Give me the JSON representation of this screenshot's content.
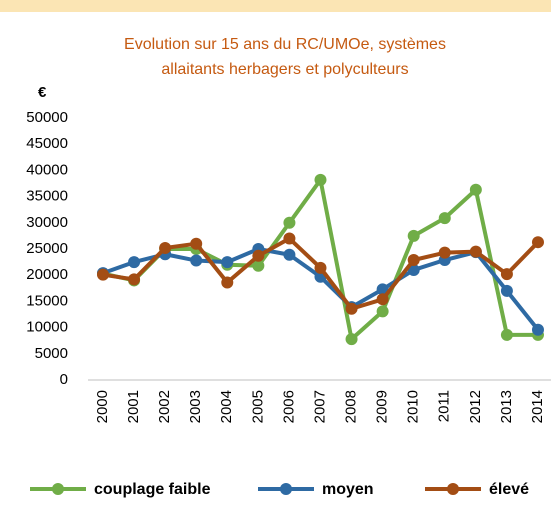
{
  "chart_data": {
    "type": "line",
    "title": [
      "Evolution  sur 15 ans du RC/UMOe, systèmes",
      "allaitants herbagers et polyculteurs"
    ],
    "y_label": "€",
    "categories": [
      "2000",
      "2001",
      "2002",
      "2003",
      "2004",
      "2005",
      "2006",
      "2007",
      "2008",
      "2009",
      "2010",
      "2011",
      "2012",
      "2013",
      "2014"
    ],
    "series": [
      {
        "name": "couplage faible",
        "color": "#70ad47",
        "values": [
          20300,
          19000,
          25000,
          25000,
          22000,
          21800,
          30000,
          38200,
          7800,
          13100,
          27500,
          30900,
          36300,
          8600,
          8600
        ]
      },
      {
        "name": "moyen",
        "color": "#2e6aa3",
        "values": [
          20400,
          22500,
          24000,
          22800,
          22500,
          25000,
          23900,
          19700,
          13900,
          17300,
          21000,
          22900,
          24400,
          17000,
          9600
        ]
      },
      {
        "name": "élevé",
        "color": "#a34d14",
        "values": [
          20100,
          19200,
          25200,
          26000,
          18600,
          23700,
          27000,
          21400,
          13600,
          15400,
          22900,
          24300,
          24500,
          20200,
          26300
        ]
      }
    ],
    "ylim": [
      0,
      50000
    ],
    "yticks": [
      0,
      5000,
      10000,
      15000,
      20000,
      25000,
      30000,
      35000,
      40000,
      45000,
      50000
    ],
    "legend": "bottom"
  }
}
